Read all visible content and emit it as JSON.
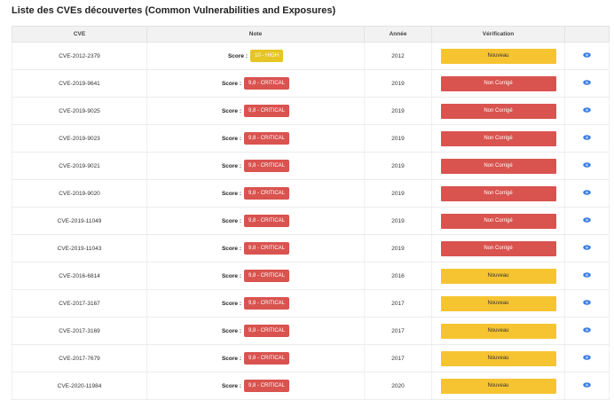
{
  "page_title": "Liste des CVEs découvertes (Common Vulnerabilities and Exposures)",
  "table": {
    "headers": [
      "CVE",
      "Note",
      "Année",
      "Vérification",
      ""
    ],
    "score_label": "Score :",
    "rows": [
      {
        "cve": "CVE-2012-2379",
        "score": "10 - HIGH",
        "severity": "high",
        "year": "2012",
        "status": "Nouveau",
        "status_type": "nouveau"
      },
      {
        "cve": "CVE-2019-9641",
        "score": "9,8 - CRITICAL",
        "severity": "critical",
        "year": "2019",
        "status": "Non Corrigé",
        "status_type": "noncorrige"
      },
      {
        "cve": "CVE-2019-9025",
        "score": "9,8 - CRITICAL",
        "severity": "critical",
        "year": "2019",
        "status": "Non Corrigé",
        "status_type": "noncorrige"
      },
      {
        "cve": "CVE-2019-9023",
        "score": "9,8 - CRITICAL",
        "severity": "critical",
        "year": "2019",
        "status": "Non Corrigé",
        "status_type": "noncorrige"
      },
      {
        "cve": "CVE-2019-9021",
        "score": "9,8 - CRITICAL",
        "severity": "critical",
        "year": "2019",
        "status": "Non Corrigé",
        "status_type": "noncorrige"
      },
      {
        "cve": "CVE-2019-9020",
        "score": "9,8 - CRITICAL",
        "severity": "critical",
        "year": "2019",
        "status": "Non Corrigé",
        "status_type": "noncorrige"
      },
      {
        "cve": "CVE-2019-11049",
        "score": "9,8 - CRITICAL",
        "severity": "critical",
        "year": "2019",
        "status": "Non Corrigé",
        "status_type": "noncorrige"
      },
      {
        "cve": "CVE-2019-11043",
        "score": "9,8 - CRITICAL",
        "severity": "critical",
        "year": "2019",
        "status": "Non Corrigé",
        "status_type": "noncorrige"
      },
      {
        "cve": "CVE-2016-6814",
        "score": "9,8 - CRITICAL",
        "severity": "critical",
        "year": "2016",
        "status": "Nouveau",
        "status_type": "nouveau"
      },
      {
        "cve": "CVE-2017-3167",
        "score": "9,8 - CRITICAL",
        "severity": "critical",
        "year": "2017",
        "status": "Nouveau",
        "status_type": "nouveau"
      },
      {
        "cve": "CVE-2017-3169",
        "score": "9,8 - CRITICAL",
        "severity": "critical",
        "year": "2017",
        "status": "Nouveau",
        "status_type": "nouveau"
      },
      {
        "cve": "CVE-2017-7679",
        "score": "9,8 - CRITICAL",
        "severity": "critical",
        "year": "2017",
        "status": "Nouveau",
        "status_type": "nouveau"
      },
      {
        "cve": "CVE-2020-11984",
        "score": "9,8 - CRITICAL",
        "severity": "critical",
        "year": "2020",
        "status": "Nouveau",
        "status_type": "nouveau"
      }
    ],
    "action_icon": "eye-icon"
  },
  "colors": {
    "critical": "#d9534f",
    "high": "#e6c525",
    "nouveau": "#f6c431",
    "non_corrige": "#d9534f",
    "eye": "#3b7ddd"
  }
}
